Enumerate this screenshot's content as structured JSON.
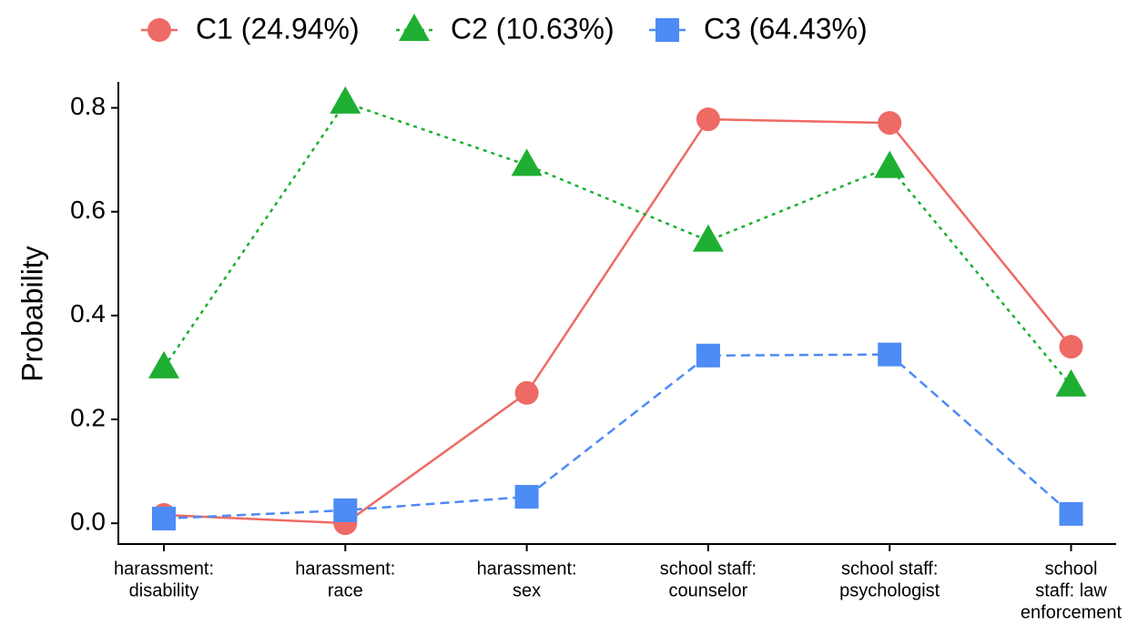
{
  "chart_data": {
    "type": "line",
    "y_label": "Probability",
    "categories": [
      [
        "harassment:",
        "disability"
      ],
      [
        "harassment:",
        "race"
      ],
      [
        "harassment:",
        "sex"
      ],
      [
        "school staff:",
        "counselor"
      ],
      [
        "school staff:",
        "psychologist"
      ],
      [
        "school",
        "staff: law",
        "enforcement"
      ]
    ],
    "series": [
      {
        "name": "C1 (24.94%)",
        "color": "#EE6A64",
        "marker": "circle",
        "dash": "solid",
        "values": [
          0.016,
          0.0,
          0.251,
          0.778,
          0.771,
          0.34
        ]
      },
      {
        "name": "C2 (10.63%)",
        "color": "#1EAF32",
        "marker": "triangle",
        "dash": "dotted",
        "values": [
          0.3,
          0.81,
          0.69,
          0.544,
          0.686,
          0.265
        ]
      },
      {
        "name": "C3 (64.43%)",
        "color": "#4D8BF5",
        "marker": "square",
        "dash": "dashed",
        "values": [
          0.009,
          0.025,
          0.051,
          0.323,
          0.325,
          0.018
        ]
      }
    ],
    "ylim": [
      -0.04,
      0.85
    ],
    "yticks": [
      {
        "value": 0,
        "label": "0.0"
      },
      0.2,
      0.4,
      0.6,
      0.8
    ],
    "legend": "top"
  }
}
